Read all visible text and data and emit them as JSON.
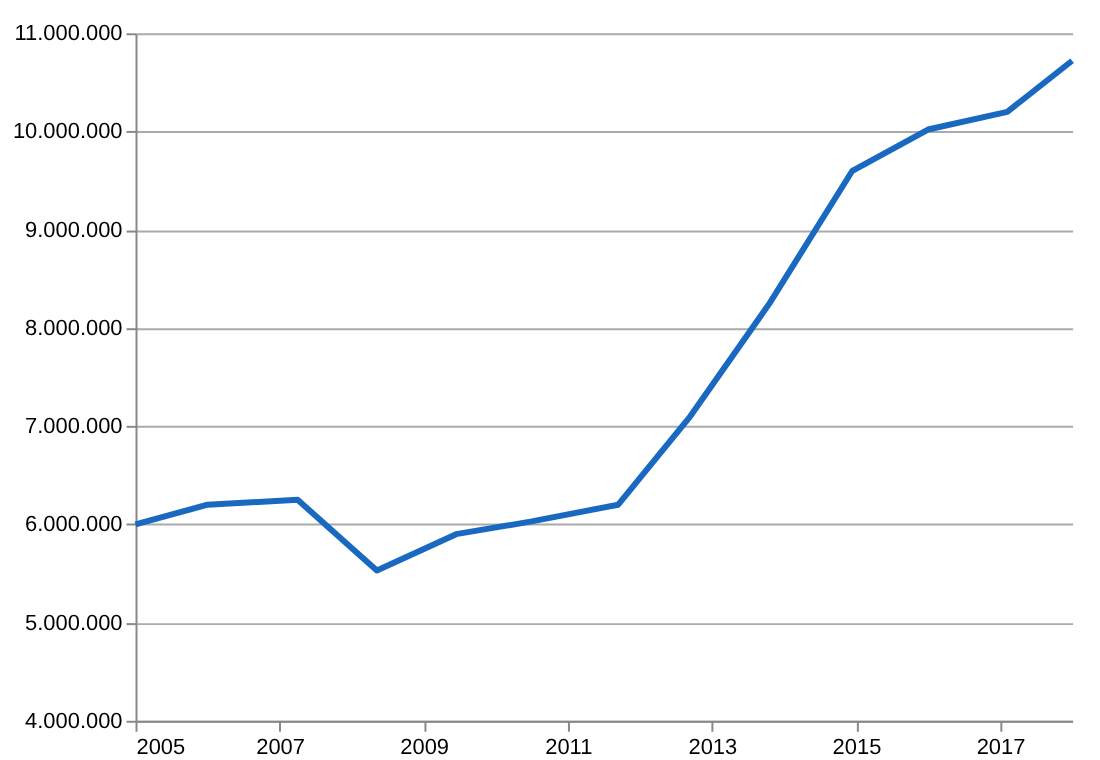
{
  "chart_data": {
    "type": "line",
    "x": [
      2005,
      2006,
      2007.25,
      2008.35,
      2009.45,
      2010.5,
      2011.7,
      2012.7,
      2013.8,
      2014.95,
      2016.0,
      2017.1,
      2018
    ],
    "series": [
      {
        "color": "#1a69c0",
        "values": [
          6000000,
          6200000,
          6250000,
          5530000,
          5900000,
          6030000,
          6200000,
          7100000,
          8250000,
          9600000,
          10020000,
          10200000,
          10720000
        ]
      }
    ],
    "xlim": [
      2005,
      2018
    ],
    "xticks": [
      2005,
      2007,
      2009,
      2011,
      2013,
      2015,
      2017
    ],
    "ylim": [
      4000000,
      11000000
    ],
    "yticks": [
      {
        "value": 4000000,
        "label": "4.000.000"
      },
      {
        "value": 5000000,
        "label": "5.000.000"
      },
      {
        "value": 6000000,
        "label": "6.000.000"
      },
      {
        "value": 7000000,
        "label": "7.000.000"
      },
      {
        "value": 8000000,
        "label": "8.000.000"
      },
      {
        "value": 9000000,
        "label": "9.000.000"
      },
      {
        "value": 10000000,
        "label": "10.000.000"
      },
      {
        "value": 11000000,
        "label": "11.000.000"
      }
    ],
    "grid": "y",
    "marker": "none",
    "line_style": "solid"
  }
}
